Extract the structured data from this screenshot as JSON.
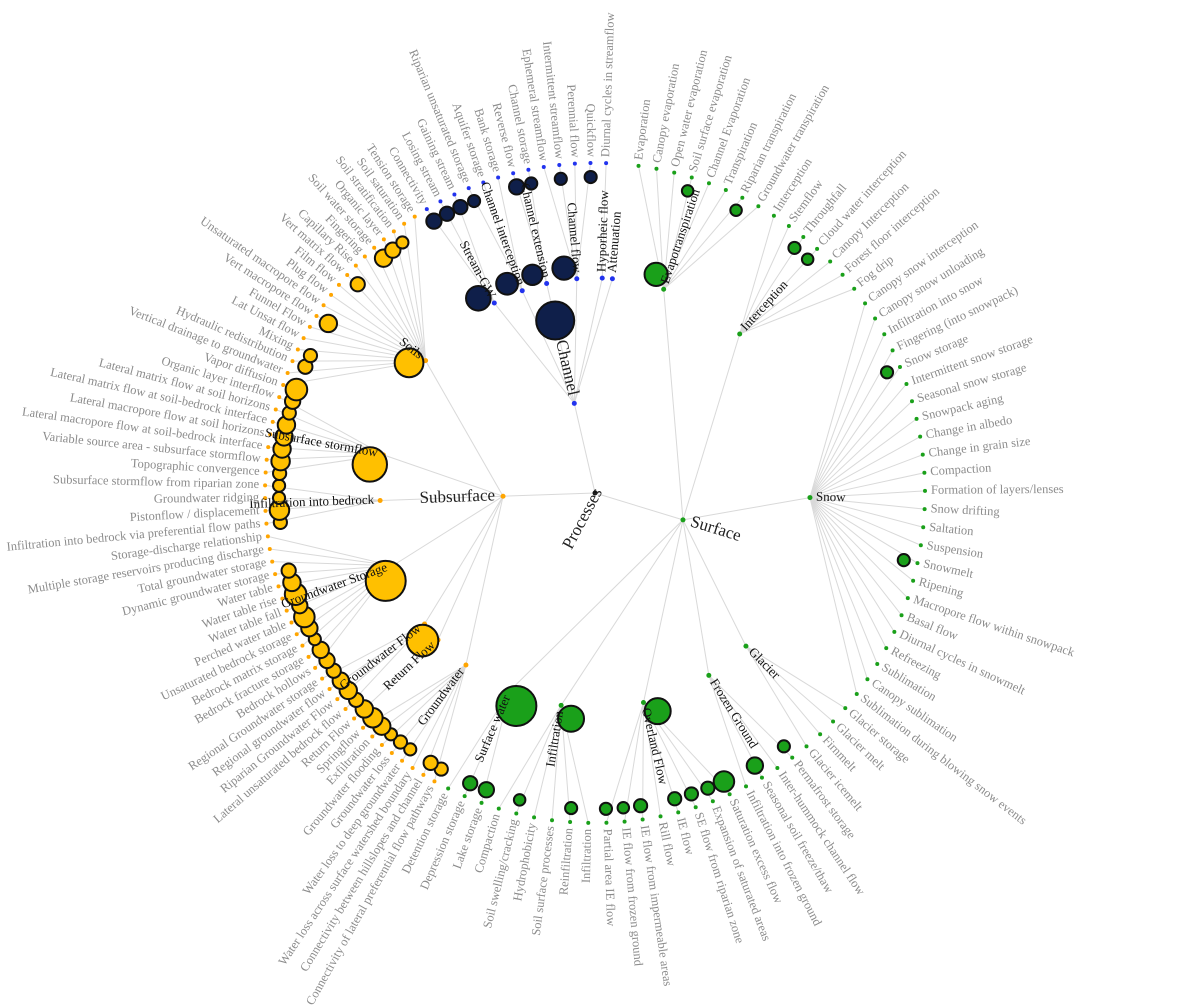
{
  "diagram": {
    "root": "Processes",
    "colors": {
      "Channel": "#0f1f4a",
      "Surface": "#1aa01a",
      "Subsurface": "#ffc000",
      "ChannelDot": "#2233ee",
      "SurfaceDot": "#1aa01a",
      "SubsurfaceDot": "#ffa500",
      "root": "#111111"
    },
    "categories": [
      {
        "name": "Channel",
        "groups": [
          {
            "name": "Stream-GW",
            "leaves": [
              {
                "label": "Connectivity",
                "size": 0.3
              },
              {
                "label": "Losing stream",
                "size": 0.25
              },
              {
                "label": "Gaining stream",
                "size": 0.25
              }
            ]
          },
          {
            "name": "Channel interception",
            "leaves": [
              {
                "label": "Riparian unsaturated storage",
                "size": 0.15
              },
              {
                "label": "Aquifer storage",
                "size": 0
              },
              {
                "label": "Bank storage",
                "size": 0
              }
            ]
          },
          {
            "name": "Channel extension",
            "leaves": [
              {
                "label": "Reverse flow",
                "size": 0.3
              },
              {
                "label": "Channel storage",
                "size": 0.15
              }
            ]
          },
          {
            "name": "Channel flow",
            "leaves": [
              {
                "label": "Ephemeral streamflow",
                "size": 0
              },
              {
                "label": "Intermittent streamflow",
                "size": 0.15
              },
              {
                "label": "Perennial flow",
                "size": 0
              },
              {
                "label": "Quickflow",
                "size": 0.15
              }
            ]
          },
          {
            "name": "Hyporheic flow",
            "leaves": [
              {
                "label": "Diurnal cycles in streamflow",
                "size": 0
              }
            ]
          },
          {
            "name": "Attenuation",
            "leaves": []
          }
        ]
      },
      {
        "name": "Surface",
        "groups": [
          {
            "name": "Evapotranspiration",
            "leaves": [
              {
                "label": "Evaporation",
                "size": 0
              },
              {
                "label": "Canopy evaporation",
                "size": 0
              },
              {
                "label": "Open water evaporation",
                "size": 0
              },
              {
                "label": "Soil surface evaporation",
                "size": 0.12
              },
              {
                "label": "Channel Evaporation",
                "size": 0
              },
              {
                "label": "Transpiration",
                "size": 0
              },
              {
                "label": "Riparian transpiration",
                "size": 0.12
              },
              {
                "label": "Groundwater transpiration",
                "size": 0
              }
            ]
          },
          {
            "name": "Interception",
            "leaves": [
              {
                "label": "Interception",
                "size": 0
              },
              {
                "label": "Stemflow",
                "size": 0
              },
              {
                "label": "Throughfall",
                "size": 0.15
              },
              {
                "label": "Cloud water interception",
                "size": 0.12
              },
              {
                "label": "Canopy Interception",
                "size": 0
              },
              {
                "label": "Forest floor interception",
                "size": 0
              },
              {
                "label": "Fog drip",
                "size": 0
              }
            ]
          },
          {
            "name": "Snow",
            "leaves": [
              {
                "label": "Canopy snow interception",
                "size": 0
              },
              {
                "label": "Canopy snow unloading",
                "size": 0
              },
              {
                "label": "Infiltration into snow",
                "size": 0
              },
              {
                "label": "Fingering (into snowpack)",
                "size": 0
              },
              {
                "label": "Snow storage",
                "size": 0.15
              },
              {
                "label": "Intermittent snow storage",
                "size": 0
              },
              {
                "label": "Seasonal snow storage",
                "size": 0
              },
              {
                "label": "Snowpack aging",
                "size": 0
              },
              {
                "label": "Change in albedo",
                "size": 0
              },
              {
                "label": "Change in grain size",
                "size": 0
              },
              {
                "label": "Compaction",
                "size": 0
              },
              {
                "label": "Formation of layers/lenses",
                "size": 0
              },
              {
                "label": "Snow drifting",
                "size": 0
              },
              {
                "label": "Saltation",
                "size": 0
              },
              {
                "label": "Suspension",
                "size": 0
              },
              {
                "label": "Snowmelt",
                "size": 0.15
              },
              {
                "label": "Ripening",
                "size": 0
              },
              {
                "label": "Macropore flow within snowpack",
                "size": 0
              },
              {
                "label": "Basal flow",
                "size": 0
              },
              {
                "label": "Diurnal cycles in snowmelt",
                "size": 0
              },
              {
                "label": "Refreezing",
                "size": 0
              },
              {
                "label": "Sublimation",
                "size": 0
              },
              {
                "label": "Canopy sublimation",
                "size": 0
              },
              {
                "label": "Sublimation during blowing snow events",
                "size": 0
              }
            ]
          },
          {
            "name": "Glacier",
            "leaves": [
              {
                "label": "Glacier storage",
                "size": 0
              },
              {
                "label": "Glacier melt",
                "size": 0
              },
              {
                "label": "Firnmelt",
                "size": 0
              },
              {
                "label": "Glacier icemelt",
                "size": 0
              }
            ]
          },
          {
            "name": "Frozen Ground",
            "leaves": [
              {
                "label": "Permafrost storage",
                "size": 0.15
              },
              {
                "label": "Inter-hummock channel flow",
                "size": 0
              },
              {
                "label": "Seasonal soil freeze/thaw",
                "size": 0.35
              },
              {
                "label": "Infiltration into frozen ground",
                "size": 0
              }
            ]
          },
          {
            "name": "Overland Flow",
            "leaves": [
              {
                "label": "Saturation excess flow",
                "size": 0.55
              },
              {
                "label": "Expansion of saturated areas",
                "size": 0.2
              },
              {
                "label": "SE flow from riparian zone",
                "size": 0.2
              },
              {
                "label": "IE flow",
                "size": 0.2
              },
              {
                "label": "Rill flow",
                "size": 0
              },
              {
                "label": "IE flow from impermeable areas",
                "size": 0.2
              },
              {
                "label": "IE flow from frozen ground",
                "size": 0.12
              },
              {
                "label": "Partial area IE flow",
                "size": 0.15
              }
            ]
          },
          {
            "name": "Infiltration",
            "leaves": [
              {
                "label": "Infiltration",
                "size": 0
              },
              {
                "label": "Reinfiltration",
                "size": 0.15
              },
              {
                "label": "Soil surface processes",
                "size": 0
              },
              {
                "label": "Hydrophobicity",
                "size": 0
              },
              {
                "label": "Soil swelling/cracking",
                "size": 0.12
              },
              {
                "label": "Compaction",
                "size": 0
              }
            ]
          },
          {
            "name": "Surface water",
            "leaves": [
              {
                "label": "Lake storage",
                "size": 0.3
              },
              {
                "label": "Depression storage",
                "size": 0.25
              },
              {
                "label": "Detention storage",
                "size": 0
              }
            ]
          }
        ]
      },
      {
        "name": "Subsurface",
        "groups": [
          {
            "name": "Groundwater",
            "leaves": [
              {
                "label": "Connectivity of lateral preferential flow pathways",
                "size": 0.2
              },
              {
                "label": "Connectivity between hillslopes and channel",
                "size": 0.25
              },
              {
                "label": "Water loss across surface watershed boundary",
                "size": 0
              },
              {
                "label": "Water loss to deep groundwater",
                "size": 0.15
              },
              {
                "label": "Groundwater loss",
                "size": 0.2
              },
              {
                "label": "Groundwater flooding",
                "size": 0.15
              },
              {
                "label": "Exfiltration",
                "size": 0.4
              },
              {
                "label": "Springflow",
                "size": 0.5
              }
            ]
          },
          {
            "name": "Return Flow",
            "leaves": [
              {
                "label": "Return Flow",
                "size": 0.4
              }
            ]
          },
          {
            "name": "Groundwater Flow",
            "leaves": [
              {
                "label": "Lateral unsaturated bedrock flow",
                "size": 0.25
              },
              {
                "label": "Riparian Groundwater Flow",
                "size": 0.4
              },
              {
                "label": "Regional groundwater flow",
                "size": 0.35
              },
              {
                "label": "Regional Groundwater storage",
                "size": 0.25
              }
            ]
          },
          {
            "name": "Groundwater Storage",
            "leaves": [
              {
                "label": "Bedrock hollows",
                "size": 0.3
              },
              {
                "label": "Bedrock fracture storage",
                "size": 0.35
              },
              {
                "label": "Bedrock matrix storage",
                "size": 0.15
              },
              {
                "label": "Unsaturated bedrock storage",
                "size": 0.35
              },
              {
                "label": "Perched water table",
                "size": 0.55
              },
              {
                "label": "Water table fall",
                "size": 0.3
              },
              {
                "label": "Water table rise",
                "size": 0.6
              },
              {
                "label": "Water table",
                "size": 0.4
              },
              {
                "label": "Dynamic groundwater storage",
                "size": 0.25
              },
              {
                "label": "Total groundwater storage",
                "size": 0
              },
              {
                "label": "Multiple storage reservoirs producing discharge",
                "size": 0
              },
              {
                "label": "Storage-discharge relationship",
                "size": 0
              }
            ]
          },
          {
            "name": "Infiltration into bedrock",
            "leaves": [
              {
                "label": "Infiltration into bedrock via preferential flow paths",
                "size": 0.2
              },
              {
                "label": "Pistonflow / displacement",
                "size": 0.5
              },
              {
                "label": "Groundwater ridging",
                "size": 0.15
              },
              {
                "label": "Subsurface stormflow from riparian zone",
                "size": 0.15
              }
            ]
          },
          {
            "name": "Subsurface stormflow",
            "leaves": [
              {
                "label": "Topographic convergence",
                "size": 0.2
              },
              {
                "label": "Variable source area - subsurface stormflow",
                "size": 0.45
              },
              {
                "label": "Lateral macropore flow at soil-bedrock interface",
                "size": 0.4
              },
              {
                "label": "Lateral macropore flow at soil horizons",
                "size": 0.4
              },
              {
                "label": "Lateral matrix flow at soil-bedrock interface",
                "size": 0.4
              },
              {
                "label": "Lateral matrix flow at soil horizons",
                "size": 0.2
              },
              {
                "label": "Organic layer interflow",
                "size": 0.3
              }
            ]
          },
          {
            "name": "Soils",
            "leaves": [
              {
                "label": "Vapor diffusion",
                "size": 0.6
              },
              {
                "label": "Vertical drainage to groundwater",
                "size": 0
              },
              {
                "label": "Hydraulic redistribution",
                "size": 0.25
              },
              {
                "label": "Mixing",
                "size": 0.2
              },
              {
                "label": "Lat Unsat flow",
                "size": 0
              },
              {
                "label": "Funnel Flow",
                "size": 0
              },
              {
                "label": "Vert macropore flow",
                "size": 0.4
              },
              {
                "label": "Unsaturated macropore flow",
                "size": 0
              },
              {
                "label": "Plug flow",
                "size": 0
              },
              {
                "label": "Film flow",
                "size": 0
              },
              {
                "label": "Vert matrix flow",
                "size": 0.25
              },
              {
                "label": "Capillary Rise",
                "size": 0
              },
              {
                "label": "Fingering",
                "size": 0
              },
              {
                "label": "Soil water storage",
                "size": 0.4
              },
              {
                "label": "Organic layer",
                "size": 0.3
              },
              {
                "label": "Soil stratification",
                "size": 0.15
              },
              {
                "label": "Soil saturation",
                "size": 0
              },
              {
                "label": "Tension storage",
                "size": 0
              }
            ]
          }
        ]
      }
    ],
    "group_bubbles": {
      "Channel": 1.0,
      "Groundwater Storage": 1.0,
      "Groundwater Flow": 0.7,
      "Surface water": 1.0,
      "Subsurface stormflow": 0.8,
      "Soils": 0.6,
      "Infiltration": 0.5,
      "Overland Flow": 0.5,
      "Evapotranspiration": 0.4,
      "Stream-GW": 0.45,
      "Channel flow": 0.4,
      "Channel extension": 0.3,
      "Channel interception": 0.35
    }
  }
}
